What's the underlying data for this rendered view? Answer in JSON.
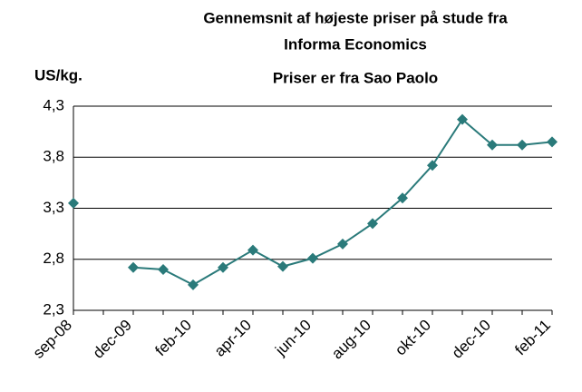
{
  "chart_data": {
    "type": "line",
    "title": [
      "Gennemsnit af højeste priser på stude fra",
      "Informa Economics",
      "Priser er fra Sao Paolo"
    ],
    "y_label": "US/kg.",
    "categories": [
      "sep-08",
      null,
      "dec-09",
      null,
      "feb-10",
      null,
      "apr-10",
      null,
      "jun-10",
      null,
      "aug-10",
      null,
      "okt-10",
      null,
      "dec-10",
      null,
      "feb-11"
    ],
    "series": [
      {
        "name": "Priser",
        "color": "#2a7a7a",
        "values": [
          3.35,
          null,
          2.72,
          2.7,
          2.55,
          2.72,
          2.89,
          2.73,
          2.81,
          2.95,
          3.15,
          3.4,
          3.72,
          4.17,
          3.92,
          3.92,
          3.95
        ]
      }
    ],
    "ylim": [
      2.3,
      4.3
    ],
    "yticks": [
      {
        "value": 2.3,
        "label": "2,3"
      },
      {
        "value": 2.8,
        "label": "2,8"
      },
      {
        "value": 3.3,
        "label": "3,3"
      },
      {
        "value": 3.8,
        "label": "3,8"
      },
      {
        "value": 4.3,
        "label": "4,3"
      }
    ],
    "grid": true,
    "legend": false
  }
}
